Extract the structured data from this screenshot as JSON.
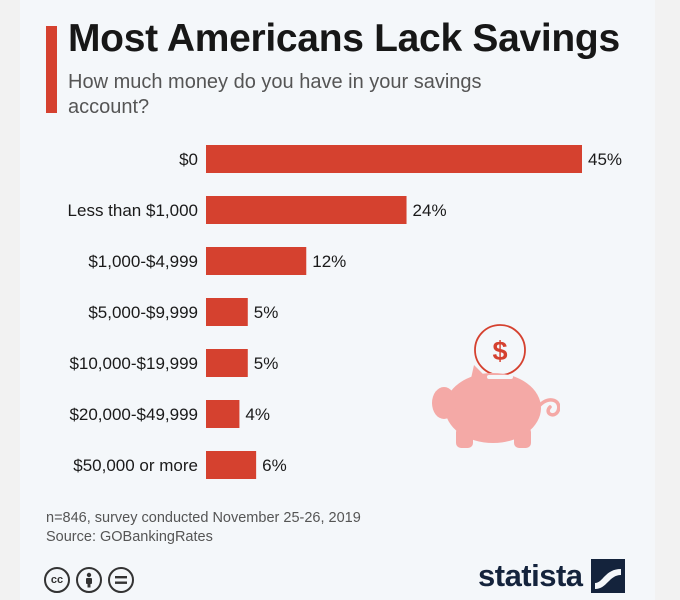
{
  "title": "Most Americans Lack Savings",
  "subtitle": "How much money do you have in your savings account?",
  "notes": {
    "sample": "n=846, survey conducted November 25-26, 2019",
    "source": "Source: GOBankingRates"
  },
  "logo": {
    "text": "statista"
  },
  "license_icons": [
    "creative-commons-icon",
    "attribution-icon",
    "no-derivatives-icon"
  ],
  "colors": {
    "accent": "#d5412f",
    "piggy": "#f4a9a6",
    "logo": "#14233c"
  },
  "chart_data": {
    "type": "bar",
    "orientation": "horizontal",
    "categories": [
      "$0",
      "Less than $1,000",
      "$1,000-$4,999",
      "$5,000-$9,999",
      "$10,000-$19,999",
      "$20,000-$49,999",
      "$50,000 or more"
    ],
    "values": [
      45,
      24,
      12,
      5,
      5,
      4,
      6
    ],
    "value_labels": [
      "45%",
      "24%",
      "12%",
      "5%",
      "5%",
      "4%",
      "6%"
    ],
    "unit": "%",
    "xlim": [
      0,
      45
    ],
    "grid": false,
    "bar_color": "#d5412f"
  }
}
